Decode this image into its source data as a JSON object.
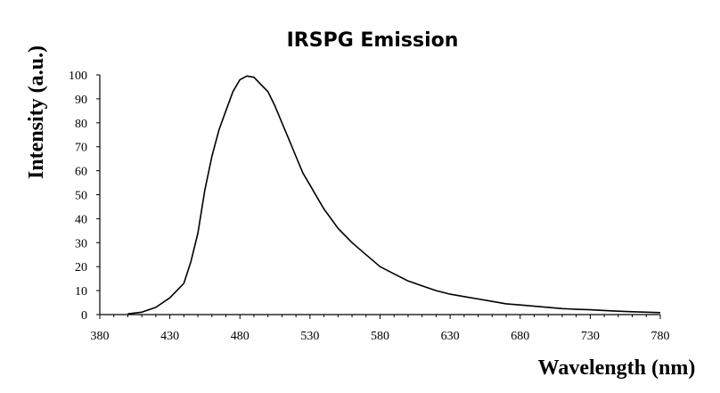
{
  "chart_data": {
    "type": "line",
    "title": "IRSPG Emission",
    "xlabel": "Wavelength (nm)",
    "ylabel": "Intensity (a.u.)",
    "xlim": [
      380,
      780
    ],
    "ylim": [
      0,
      100
    ],
    "x_ticks": [
      "380",
      "430",
      "480",
      "530",
      "580",
      "630",
      "680",
      "730",
      "780"
    ],
    "y_ticks": [
      "0",
      "10",
      "20",
      "30",
      "40",
      "50",
      "60",
      "70",
      "80",
      "90",
      "100"
    ],
    "grid": false,
    "legend": "none",
    "line_color": "#000000",
    "series": [
      {
        "x": [
          400,
          410,
          420,
          430,
          435,
          440,
          445,
          450,
          455,
          460,
          465,
          470,
          475,
          480,
          485,
          490,
          495,
          500,
          505,
          510,
          515,
          520,
          525,
          530,
          535,
          540,
          545,
          550,
          560,
          570,
          580,
          590,
          600,
          610,
          620,
          630,
          640,
          650,
          660,
          670,
          680,
          690,
          700,
          710,
          720,
          730,
          740,
          750,
          760,
          770,
          780
        ],
        "y": [
          0.3,
          1,
          3,
          7,
          10,
          13,
          22,
          34,
          52,
          66,
          77,
          85,
          93,
          98,
          99.5,
          99,
          96,
          93,
          87,
          80,
          73,
          66,
          59,
          54,
          49,
          44,
          40,
          36,
          30,
          25,
          20,
          17,
          14,
          12,
          10,
          8.5,
          7.5,
          6.5,
          5.5,
          4.5,
          4,
          3.5,
          3,
          2.5,
          2.2,
          2,
          1.7,
          1.4,
          1.2,
          1,
          0.8
        ]
      }
    ]
  }
}
